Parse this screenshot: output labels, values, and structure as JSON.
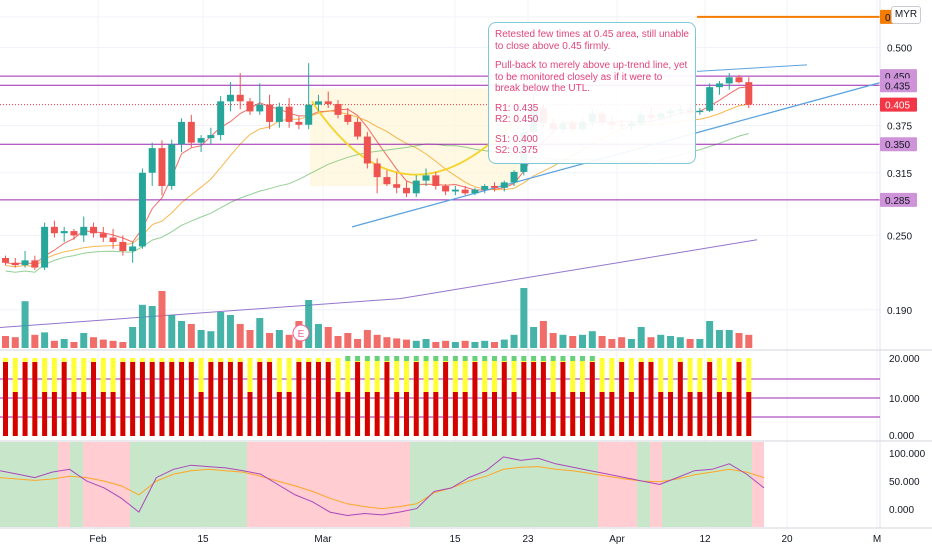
{
  "currency_label": "MYR",
  "annotation": {
    "line1": "Retested few times at 0.45 area, still unable to close above 0.45 firmly.",
    "line2": "Pull-back to merely above up-trend line, yet to be monitored closely as if it were to break below the UTL.",
    "r1": "R1: 0.435",
    "r2": "R2: 0.450",
    "s1": "S1: 0.400",
    "s2": "S2: 0.375"
  },
  "earnings_marker": "E",
  "colors": {
    "up": "#26a69a",
    "down": "#ef5350",
    "level_line": "#9c27b0",
    "price_tag": "#ce93d8",
    "resistance_orange": "#f57c00",
    "current_price": "#f23645",
    "trendline": "#5ba3e0",
    "cup_curve": "#f5d328",
    "cup_fill": "#fff5d6",
    "osc_green": "#c8e6c9",
    "osc_red": "#ffcdd2",
    "vol_red": "#d50000",
    "vol_yellow": "#ffff33"
  },
  "chart_data": {
    "type": "candlestick",
    "price_axis": {
      "ticks": [
        "0.500",
        "0.375",
        "0.315",
        "0.250",
        "0.190"
      ],
      "ylim": [
        0.165,
        0.585
      ],
      "scale": "log"
    },
    "x_ticks": [
      "Feb",
      "15",
      "Mar",
      "15",
      "23",
      "Apr",
      "12",
      "20",
      "M"
    ],
    "level_tags": [
      {
        "value": 0.56,
        "label": "0.560",
        "style": "orange"
      },
      {
        "value": 0.45,
        "label": "0.450",
        "style": "purple"
      },
      {
        "value": 0.435,
        "label": "0.435",
        "style": "purple"
      },
      {
        "value": 0.405,
        "label": "0.405",
        "style": "current"
      },
      {
        "value": 0.35,
        "label": "0.350",
        "style": "purple"
      },
      {
        "value": 0.285,
        "label": "0.285",
        "style": "purple"
      }
    ],
    "candles": [
      [
        0.23,
        0.232,
        0.224,
        0.226
      ],
      [
        0.226,
        0.23,
        0.222,
        0.224
      ],
      [
        0.224,
        0.236,
        0.222,
        0.228
      ],
      [
        0.228,
        0.232,
        0.22,
        0.222
      ],
      [
        0.222,
        0.262,
        0.22,
        0.258
      ],
      [
        0.258,
        0.264,
        0.248,
        0.252
      ],
      [
        0.252,
        0.258,
        0.244,
        0.254
      ],
      [
        0.254,
        0.256,
        0.246,
        0.25
      ],
      [
        0.25,
        0.268,
        0.244,
        0.258
      ],
      [
        0.258,
        0.262,
        0.248,
        0.252
      ],
      [
        0.252,
        0.258,
        0.244,
        0.248
      ],
      [
        0.248,
        0.256,
        0.238,
        0.244
      ],
      [
        0.244,
        0.25,
        0.232,
        0.236
      ],
      [
        0.236,
        0.244,
        0.226,
        0.24
      ],
      [
        0.24,
        0.32,
        0.238,
        0.315
      ],
      [
        0.315,
        0.352,
        0.3,
        0.345
      ],
      [
        0.345,
        0.355,
        0.29,
        0.3
      ],
      [
        0.3,
        0.356,
        0.296,
        0.35
      ],
      [
        0.35,
        0.385,
        0.34,
        0.38
      ],
      [
        0.38,
        0.39,
        0.346,
        0.352
      ],
      [
        0.352,
        0.362,
        0.34,
        0.358
      ],
      [
        0.358,
        0.372,
        0.35,
        0.362
      ],
      [
        0.362,
        0.418,
        0.355,
        0.41
      ],
      [
        0.41,
        0.44,
        0.395,
        0.42
      ],
      [
        0.42,
        0.455,
        0.398,
        0.41
      ],
      [
        0.41,
        0.415,
        0.39,
        0.395
      ],
      [
        0.395,
        0.438,
        0.39,
        0.405
      ],
      [
        0.405,
        0.42,
        0.37,
        0.38
      ],
      [
        0.38,
        0.408,
        0.372,
        0.402
      ],
      [
        0.402,
        0.415,
        0.372,
        0.38
      ],
      [
        0.38,
        0.388,
        0.37,
        0.376
      ],
      [
        0.376,
        0.472,
        0.37,
        0.405
      ],
      [
        0.405,
        0.42,
        0.395,
        0.41
      ],
      [
        0.41,
        0.425,
        0.4,
        0.406
      ],
      [
        0.406,
        0.412,
        0.385,
        0.39
      ],
      [
        0.39,
        0.4,
        0.376,
        0.38
      ],
      [
        0.38,
        0.386,
        0.356,
        0.36
      ],
      [
        0.36,
        0.366,
        0.32,
        0.326
      ],
      [
        0.326,
        0.332,
        0.292,
        0.31
      ],
      [
        0.31,
        0.318,
        0.3,
        0.302
      ],
      [
        0.302,
        0.315,
        0.292,
        0.298
      ],
      [
        0.298,
        0.305,
        0.288,
        0.292
      ],
      [
        0.292,
        0.312,
        0.288,
        0.306
      ],
      [
        0.306,
        0.32,
        0.3,
        0.312
      ],
      [
        0.312,
        0.316,
        0.296,
        0.3
      ],
      [
        0.3,
        0.302,
        0.29,
        0.294
      ],
      [
        0.294,
        0.3,
        0.29,
        0.296
      ],
      [
        0.296,
        0.3,
        0.29,
        0.292
      ],
      [
        0.292,
        0.298,
        0.29,
        0.296
      ],
      [
        0.296,
        0.302,
        0.292,
        0.3
      ],
      [
        0.3,
        0.304,
        0.294,
        0.298
      ],
      [
        0.298,
        0.306,
        0.294,
        0.304
      ],
      [
        0.304,
        0.318,
        0.3,
        0.316
      ],
      [
        0.316,
        0.372,
        0.312,
        0.366
      ],
      [
        0.366,
        0.42,
        0.36,
        0.4
      ],
      [
        0.4,
        0.405,
        0.372,
        0.378
      ],
      [
        0.378,
        0.385,
        0.366,
        0.37
      ],
      [
        0.37,
        0.382,
        0.364,
        0.378
      ],
      [
        0.378,
        0.382,
        0.366,
        0.37
      ],
      [
        0.37,
        0.385,
        0.366,
        0.38
      ],
      [
        0.38,
        0.4,
        0.374,
        0.392
      ],
      [
        0.392,
        0.396,
        0.375,
        0.38
      ],
      [
        0.38,
        0.388,
        0.37,
        0.376
      ],
      [
        0.376,
        0.382,
        0.37,
        0.374
      ],
      [
        0.374,
        0.382,
        0.368,
        0.378
      ],
      [
        0.378,
        0.395,
        0.374,
        0.39
      ],
      [
        0.39,
        0.402,
        0.38,
        0.386
      ],
      [
        0.386,
        0.395,
        0.382,
        0.392
      ],
      [
        0.392,
        0.4,
        0.385,
        0.396
      ],
      [
        0.396,
        0.404,
        0.39,
        0.398
      ],
      [
        0.398,
        0.404,
        0.392,
        0.394
      ],
      [
        0.394,
        0.4,
        0.39,
        0.396
      ],
      [
        0.396,
        0.438,
        0.394,
        0.432
      ],
      [
        0.432,
        0.442,
        0.42,
        0.438
      ],
      [
        0.438,
        0.455,
        0.428,
        0.448
      ],
      [
        0.448,
        0.452,
        0.438,
        0.44
      ],
      [
        0.44,
        0.448,
        0.4,
        0.405
      ]
    ],
    "volume": [
      0.2,
      0.18,
      0.78,
      0.22,
      0.26,
      0.12,
      0.15,
      0.1,
      0.25,
      0.18,
      0.14,
      0.12,
      0.1,
      0.35,
      0.72,
      0.7,
      0.95,
      0.55,
      0.45,
      0.4,
      0.3,
      0.28,
      0.6,
      0.55,
      0.4,
      0.3,
      0.5,
      0.25,
      0.3,
      0.22,
      0.45,
      0.8,
      0.4,
      0.35,
      0.2,
      0.25,
      0.15,
      0.3,
      0.22,
      0.18,
      0.16,
      0.14,
      0.12,
      0.15,
      0.1,
      0.12,
      0.1,
      0.12,
      0.1,
      0.12,
      0.1,
      0.14,
      0.22,
      1.0,
      0.35,
      0.45,
      0.25,
      0.22,
      0.2,
      0.22,
      0.28,
      0.2,
      0.15,
      0.18,
      0.15,
      0.35,
      0.18,
      0.22,
      0.2,
      0.18,
      0.15,
      0.15,
      0.45,
      0.3,
      0.3,
      0.25,
      0.22
    ],
    "volume_axis": {
      "ticks": [
        "20.000",
        "10.000",
        "0.000"
      ]
    },
    "oscillator_axis": {
      "ticks": [
        "100.000",
        "50.000",
        "0.000"
      ]
    }
  }
}
